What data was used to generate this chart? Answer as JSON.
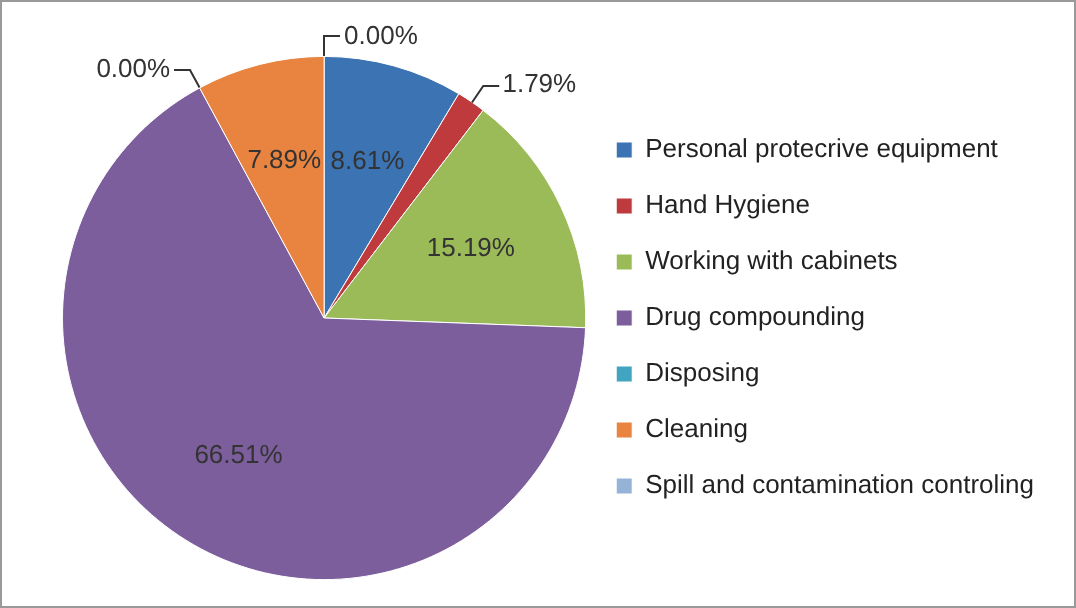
{
  "chart_data": {
    "type": "pie",
    "categories": [
      "Personal protecrive equipment",
      "Hand Hygiene",
      "Working with cabinets",
      "Drug compounding",
      "Disposing",
      "Cleaning",
      "Spill and contamination controling"
    ],
    "values": [
      8.61,
      1.79,
      15.19,
      66.51,
      0.0,
      7.89,
      0.0
    ],
    "value_labels": [
      "8.61%",
      "1.79%",
      "15.19%",
      "66.51%",
      "0.00%",
      "7.89%",
      "0.00%"
    ],
    "colors": [
      "#3c73b2",
      "#be3a3c",
      "#9bbb59",
      "#7b5e9b",
      "#41a4c0",
      "#e8843f",
      "#95b3d7"
    ],
    "legend": "right"
  }
}
